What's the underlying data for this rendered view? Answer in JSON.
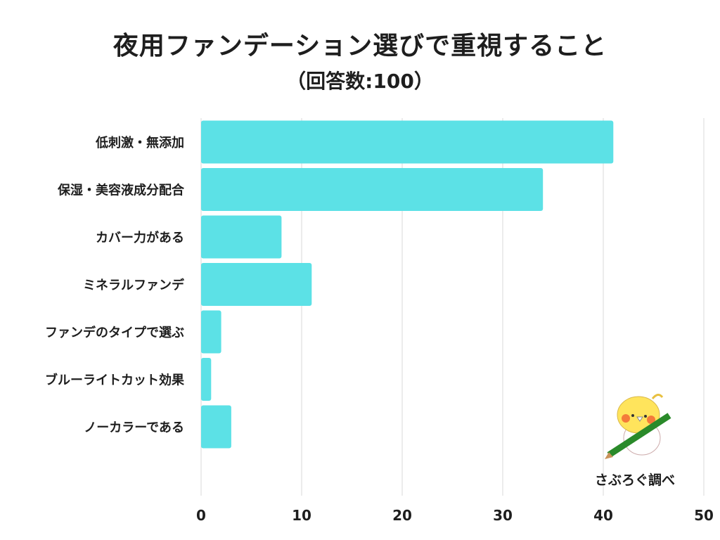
{
  "chart_data": {
    "type": "bar",
    "orientation": "horizontal",
    "title": "夜用ファンデーション選びで重視すること",
    "subtitle": "（回答数:100）",
    "categories": [
      "低刺激・無添加",
      "保湿・美容液成分配合",
      "カバー力がある",
      "ミネラルファンデ",
      "ファンデのタイプで選ぶ",
      "ブルーライトカット効果",
      "ノーカラーである"
    ],
    "values": [
      41,
      34,
      8,
      11,
      2,
      1,
      3
    ],
    "xlim": [
      0,
      50
    ],
    "xticks": [
      0,
      10,
      20,
      30,
      40,
      50
    ],
    "grid": true,
    "bar_color": "#5ce1e6"
  },
  "credit": "さぶろぐ調べ"
}
